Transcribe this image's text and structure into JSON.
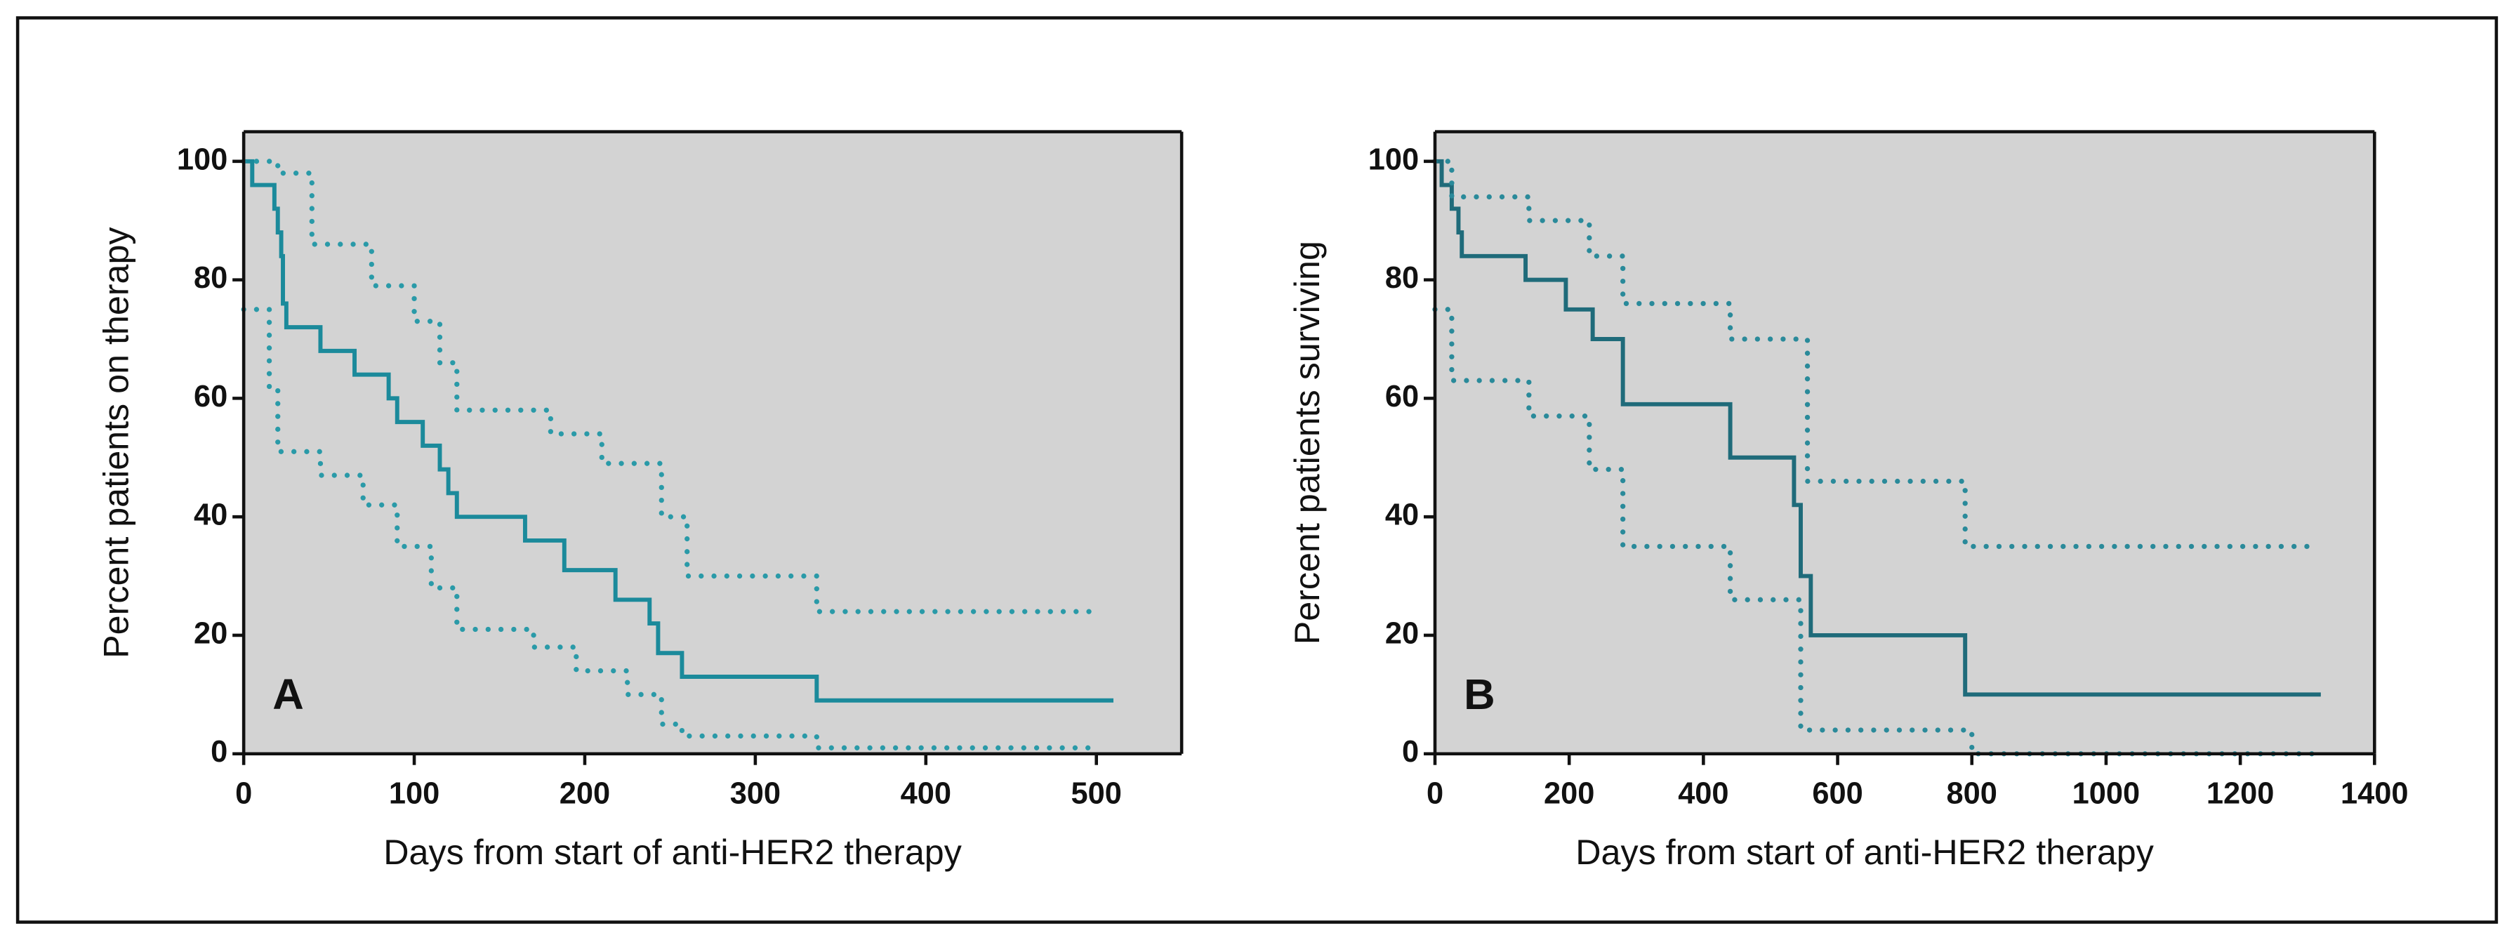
{
  "chart_data": [
    {
      "type": "step",
      "panel_label": "A",
      "y_label": "Percent patients on therapy",
      "x_label": "Days from start of anti-HER2 therapy",
      "xlim": [
        0,
        550
      ],
      "ylim": [
        0,
        105
      ],
      "xticks": [
        0,
        100,
        200,
        300,
        400,
        500
      ],
      "yticks": [
        0,
        20,
        40,
        60,
        80,
        100
      ],
      "series": [
        {
          "color": "#1b8a9b",
          "style": "solid",
          "x": [
            0,
            5,
            18,
            20,
            22,
            23,
            25,
            45,
            65,
            85,
            90,
            105,
            115,
            120,
            125,
            165,
            188,
            218,
            238,
            243,
            257,
            336,
            510
          ],
          "values": [
            100,
            96,
            92,
            88,
            84,
            76,
            72,
            68,
            64,
            60,
            56,
            52,
            48,
            44,
            40,
            36,
            31,
            26,
            22,
            17,
            13,
            9,
            9
          ]
        },
        {
          "color": "#2a9aa8",
          "style": "dotted",
          "x": [
            0,
            20,
            40,
            75,
            100,
            115,
            125,
            180,
            210,
            245,
            260,
            336,
            500
          ],
          "values": [
            100,
            98,
            86,
            79,
            73,
            66,
            58,
            54,
            49,
            40,
            30,
            24,
            24
          ]
        },
        {
          "color": "#2a9aa8",
          "style": "dotted",
          "x": [
            0,
            15,
            20,
            45,
            70,
            90,
            110,
            125,
            170,
            195,
            225,
            245,
            257,
            336,
            500
          ],
          "values": [
            75,
            62,
            51,
            47,
            42,
            35,
            28,
            21,
            18,
            14,
            10,
            5,
            3,
            1,
            1
          ]
        }
      ]
    },
    {
      "type": "step",
      "panel_label": "B",
      "y_label": "Percent patients surviving",
      "x_label": "Days from start of anti-HER2 therapy",
      "xlim": [
        0,
        1400
      ],
      "ylim": [
        0,
        105
      ],
      "xticks": [
        0,
        200,
        400,
        600,
        800,
        1000,
        1200,
        1400
      ],
      "yticks": [
        0,
        20,
        40,
        60,
        80,
        100
      ],
      "series": [
        {
          "color": "#1f6b7a",
          "style": "solid",
          "x": [
            0,
            10,
            25,
            35,
            40,
            135,
            195,
            235,
            280,
            440,
            535,
            545,
            560,
            790,
            1320
          ],
          "values": [
            100,
            96,
            92,
            88,
            84,
            80,
            75,
            70,
            59,
            50,
            42,
            30,
            20,
            10,
            10
          ]
        },
        {
          "color": "#2a8a9a",
          "style": "dotted",
          "x": [
            0,
            25,
            140,
            230,
            280,
            440,
            555,
            790,
            1300
          ],
          "values": [
            100,
            94,
            90,
            84,
            76,
            70,
            46,
            35,
            35
          ]
        },
        {
          "color": "#2a8a9a",
          "style": "dotted",
          "x": [
            0,
            25,
            140,
            230,
            280,
            440,
            545,
            800,
            1320
          ],
          "values": [
            75,
            63,
            57,
            48,
            35,
            26,
            4,
            0,
            0
          ]
        }
      ]
    }
  ]
}
